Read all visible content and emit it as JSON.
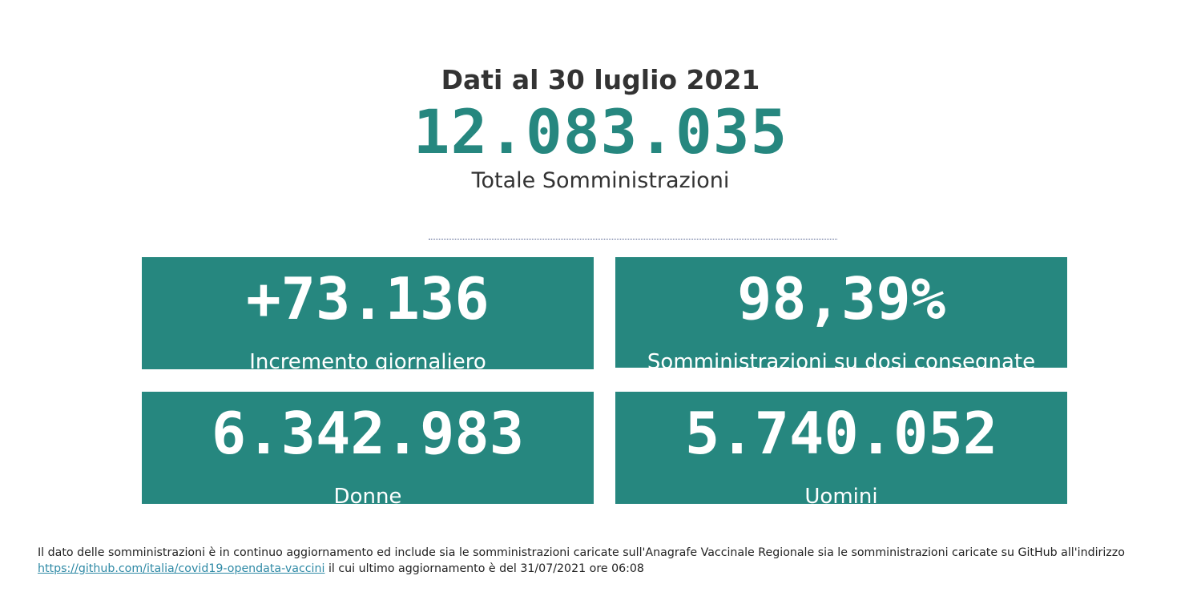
{
  "header": {
    "date_line": "Dati al 30 luglio 2021",
    "total_value": "12.083.035",
    "total_label": "Totale Somministrazioni"
  },
  "cards": [
    {
      "value": "+73.136",
      "label": "Incremento giornaliero"
    },
    {
      "value": "98,39%",
      "label": "Somministrazioni su dosi consegnate"
    },
    {
      "value": "6.342.983",
      "label": "Donne"
    },
    {
      "value": "5.740.052",
      "label": "Uomini"
    }
  ],
  "footnote": {
    "text_before": "Il dato delle somministrazioni è in continuo aggiornamento ed include sia le somministrazioni caricate sull'Anagrafe Vaccinale Regionale sia le somministrazioni caricate su GitHub all'indirizzo",
    "link_text": "https://github.com/italia/covid19-opendata-vaccini",
    "text_after": "il cui ultimo aggiornamento è del 31/07/2021 ore 06:08"
  },
  "colors": {
    "accent": "#26877f",
    "card_text": "#ffffff",
    "text": "#333333",
    "link": "#2f8aa6"
  }
}
